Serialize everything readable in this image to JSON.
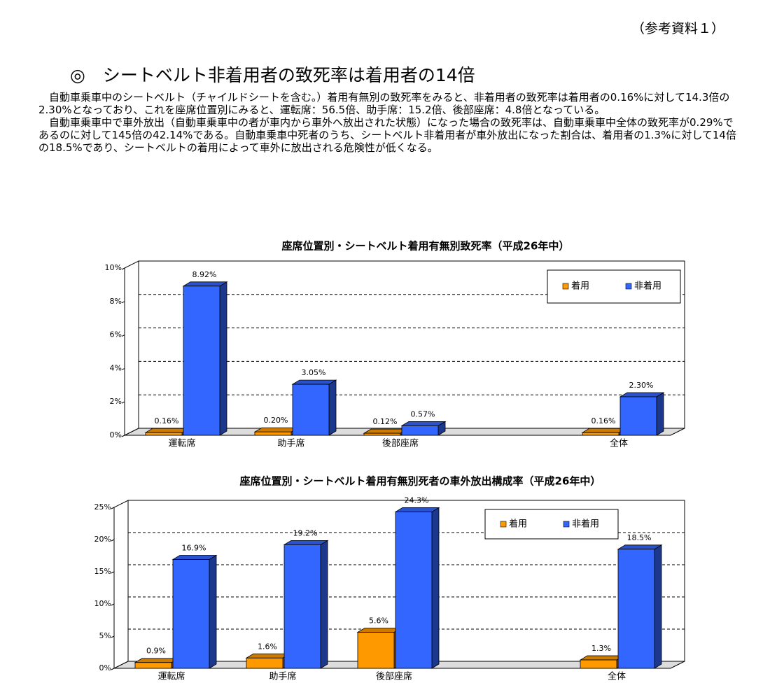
{
  "header": "（参考資料１）",
  "heading": "◎　シートベルト非着用者の致死率は着用者の14倍",
  "paragraphs": [
    "自動車乗車中のシートベルト（チャイルドシートを含む。）着用有無別の致死率をみると、非着用者の致死率は着用者の0.16%に対して14.3倍の2.30%となっており、これを座席位置別にみると、運転席：56.5倍、助手席：15.2倍、後部座席：4.8倍となっている。",
    "自動車乗車中で車外放出（自動車乗車中の者が車内から車外へ放出された状態）になった場合の致死率は、自動車乗車中全体の致死率が0.29%であるのに対して145倍の42.14%である。自動車乗車中死者のうち、シートベルト非着用者が車外放出になった割合は、着用者の1.3%に対して14倍の18.5%であり、シートベルトの着用によって車外に放出される危険性が低くなる。"
  ],
  "chart_data": [
    {
      "type": "bar",
      "title": "座席位置別・シートベルト着用有無別致死率（平成26年中）",
      "categories": [
        "運転席",
        "助手席",
        "後部座席",
        null,
        "全体"
      ],
      "series": [
        {
          "name": "着用",
          "color": "#ff9900",
          "values": [
            0.16,
            0.2,
            0.12,
            null,
            0.16
          ],
          "value_labels": [
            "0.16%",
            "0.20%",
            "0.12%",
            null,
            "0.16%"
          ]
        },
        {
          "name": "非着用",
          "color": "#3366ff",
          "values": [
            8.92,
            3.05,
            0.57,
            null,
            2.3
          ],
          "value_labels": [
            "8.92%",
            "3.05%",
            "0.57%",
            null,
            "2.30%"
          ]
        }
      ],
      "ylim": [
        0,
        10
      ],
      "yticks": [
        {
          "value": 0,
          "label": "0%"
        },
        {
          "value": 2,
          "label": "2%"
        },
        {
          "value": 4,
          "label": "4%"
        },
        {
          "value": 6,
          "label": "6%"
        },
        {
          "value": 8,
          "label": "8%"
        },
        {
          "value": 10,
          "label": "10%"
        }
      ],
      "grid": true,
      "legend": "upper right"
    },
    {
      "type": "bar",
      "title": "座席位置別・シートベルト着用有無別死者の車外放出構成率（平成26年中）",
      "categories": [
        "運転席",
        "助手席",
        "後部座席",
        null,
        "全体"
      ],
      "series": [
        {
          "name": "着用",
          "color": "#ff9900",
          "values": [
            0.9,
            1.6,
            5.6,
            null,
            1.3
          ],
          "value_labels": [
            "0.9%",
            "1.6%",
            "5.6%",
            null,
            "1.3%"
          ]
        },
        {
          "name": "非着用",
          "color": "#3366ff",
          "values": [
            16.9,
            19.2,
            24.3,
            null,
            18.5
          ],
          "value_labels": [
            "16.9%",
            "19.2%",
            "24.3%",
            null,
            "18.5%"
          ]
        }
      ],
      "ylim": [
        0,
        25
      ],
      "yticks": [
        {
          "value": 0,
          "label": "0%"
        },
        {
          "value": 5,
          "label": "5%"
        },
        {
          "value": 10,
          "label": "10%"
        },
        {
          "value": 15,
          "label": "15%"
        },
        {
          "value": 20,
          "label": "20%"
        },
        {
          "value": 25,
          "label": "25%"
        }
      ],
      "grid": true,
      "legend": "upper right"
    }
  ]
}
